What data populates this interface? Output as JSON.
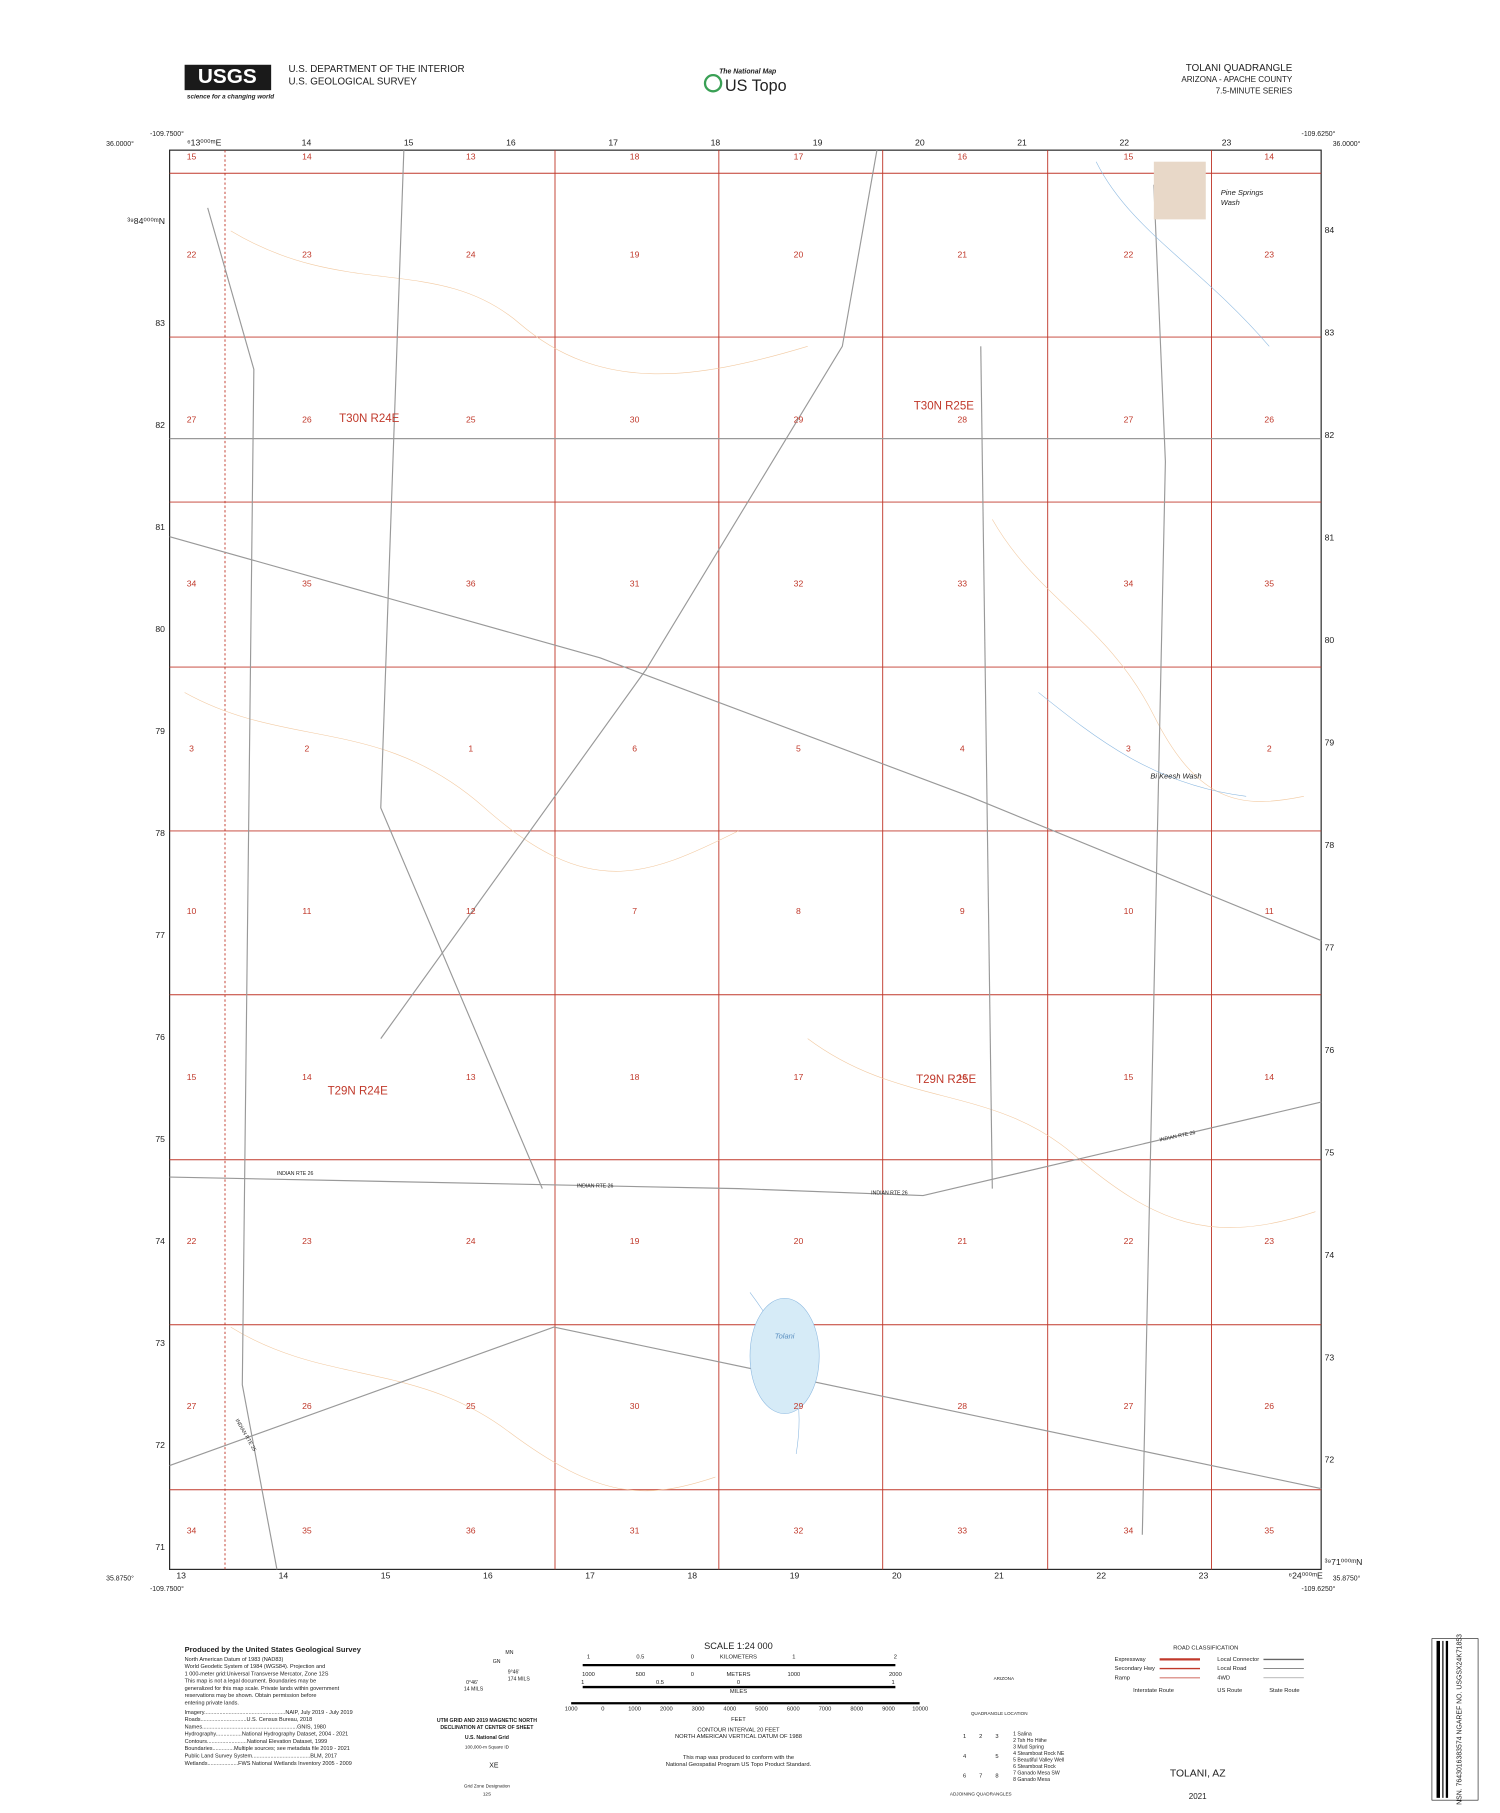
{
  "header": {
    "logo": "USGS",
    "tagline": "science for a changing world",
    "agency": "U.S. DEPARTMENT OF THE INTERIOR",
    "survey": "U.S. GEOLOGICAL SURVEY",
    "national_map": "The National Map",
    "us_topo": "US Topo",
    "quad_title": "TOLANI QUADRANGLE",
    "state_county": "ARIZONA - APACHE COUNTY",
    "series": "7.5-MINUTE SERIES"
  },
  "map": {
    "corners": {
      "top_left_lon": "-109.7500°",
      "top_left_lat": "36.0000°",
      "top_right_lon": "-109.6250°",
      "top_right_lat": "36.0000°",
      "bottom_left_lon": "-109.7500°",
      "bottom_left_lat": "35.8750°",
      "bottom_right_lon": "-109.6250°",
      "bottom_right_lat": "35.8750°"
    },
    "easting_top": [
      "⁶13⁰⁰⁰ᵐE",
      "14",
      "15",
      "16",
      "17",
      "18",
      "19",
      "20",
      "21",
      "22",
      "23"
    ],
    "easting_bottom": [
      "13",
      "14",
      "15",
      "16",
      "17",
      "18",
      "19",
      "20",
      "21",
      "22",
      "23",
      "⁶24⁰⁰⁰ᵐE"
    ],
    "northing_left": [
      "³⁹84⁰⁰⁰ᵐN",
      "83",
      "82",
      "81",
      "80",
      "79",
      "78",
      "77",
      "76",
      "75",
      "74",
      "73",
      "72",
      "71"
    ],
    "northing_right": [
      "84",
      "83",
      "82",
      "81",
      "80",
      "79",
      "78",
      "77",
      "76",
      "75",
      "74",
      "73",
      "72",
      "³⁹71⁰⁰⁰ᵐN"
    ],
    "sections": [
      [
        15,
        14,
        13,
        18,
        17,
        16,
        15,
        14
      ],
      [
        22,
        23,
        24,
        19,
        20,
        21,
        22,
        23
      ],
      [
        27,
        26,
        25,
        30,
        29,
        28,
        27,
        26
      ],
      [
        34,
        35,
        36,
        31,
        32,
        33,
        34,
        35
      ],
      [
        3,
        2,
        1,
        6,
        5,
        4,
        3,
        2
      ],
      [
        10,
        11,
        12,
        7,
        8,
        9,
        10,
        11
      ],
      [
        15,
        14,
        13,
        18,
        17,
        16,
        15,
        14
      ],
      [
        22,
        23,
        24,
        19,
        20,
        21,
        22,
        23
      ],
      [
        27,
        26,
        25,
        30,
        29,
        28,
        27,
        26
      ],
      [
        34,
        35,
        36,
        31,
        32,
        33,
        34,
        35
      ]
    ],
    "townships": [
      "T30N R24E",
      "T30N R25E",
      "T29N R24E",
      "T29N R25E"
    ],
    "places": [
      "Pine Springs",
      "Wash",
      "Bi Keesh Wash",
      "Tolani"
    ],
    "roads": [
      "INDIAN RTE 26",
      "INDIAN RTE 26",
      "INDIAN RTE 26",
      "INDIAN RTE 26",
      "INDIAN RTE 25"
    ]
  },
  "footer": {
    "producer": "Produced by the United States Geological Survey",
    "notes": [
      "North American Datum of 1983 (NAD83)",
      "World Geodetic System of 1984 (WGS84). Projection and",
      "1 000-meter grid:Universal Transverse Mercator, Zone 12S",
      "This map is not a legal document. Boundaries may be",
      "generalized for this map scale. Private lands within government",
      "reservations may be shown. Obtain permission before",
      "entering private lands."
    ],
    "credits": [
      "Imagery.....................................................NAIP, July 2019 - July 2019",
      "Roads..............................U.S. Census Bureau, 2018",
      "Names..............................................................GNIS, 1980",
      "Hydrography.................National Hydrography Dataset, 2004 - 2021",
      "Contours..........................National Elevation Dataset, 1999",
      "Boundaries..............Multiple sources; see metadata file 2019 - 2021",
      "Public Land Survey System......................................BLM, 2017",
      "Wetlands....................FWS National Wetlands Inventory 2005 - 2009"
    ],
    "declination": {
      "mn": "MN",
      "gn": "GN",
      "angle1": "9°46'",
      "mils1": "174 MILS",
      "angle2": "0°46'",
      "mils2": "14 MILS",
      "caption1": "UTM GRID AND 2019 MAGNETIC NORTH",
      "caption2": "DECLINATION AT CENTER OF SHEET"
    },
    "usng": {
      "title": "U.S. National Grid",
      "square_id": "100,000-m Square ID",
      "square": "XE",
      "gzd_label": "Grid Zone Designation",
      "gzd": "12S"
    },
    "scale": {
      "title": "SCALE 1:24 000",
      "km_label": "KILOMETERS",
      "km": [
        "1",
        "0.5",
        "0",
        "1",
        "2"
      ],
      "m_label": "METERS",
      "m": [
        "1000",
        "500",
        "0",
        "1000",
        "2000"
      ],
      "mi_label": "MILES",
      "mi": [
        "1",
        "0.5",
        "0",
        "1"
      ],
      "ft_label": "FEET",
      "ft": [
        "1000",
        "0",
        "1000",
        "2000",
        "3000",
        "4000",
        "5000",
        "6000",
        "7000",
        "8000",
        "9000",
        "10000"
      ]
    },
    "contour": [
      "CONTOUR INTERVAL 20 FEET",
      "NORTH AMERICAN VERTICAL DATUM OF 1988"
    ],
    "standard": [
      "This map was produced to conform with the",
      "National Geospatial Program US Topo Product Standard."
    ],
    "location": {
      "state": "ARIZONA",
      "caption": "QUADRANGLE LOCATION"
    },
    "adjoining": {
      "cells": [
        "1",
        "2",
        "3",
        "4",
        "5",
        "6",
        "7",
        "8"
      ],
      "names": [
        "1 Salina",
        "2 Tsh Ho Hiihe",
        "3 Mud Spring",
        "4 Steamboat Rock NE",
        "5 Beautiful Valley Well",
        "6 Steamboat Rock",
        "7 Ganado Mesa SW",
        "8 Ganado Mesa"
      ],
      "caption": "ADJOINING QUADRANGLES"
    },
    "roads": {
      "title": "ROAD CLASSIFICATION",
      "left": [
        "Expressway",
        "Secondary Hwy",
        "Ramp"
      ],
      "right": [
        "Local Connector",
        "Local Road",
        "4WD"
      ],
      "shields": [
        "Interstate Route",
        "US Route",
        "State Route"
      ]
    },
    "quad_name": "TOLANI, AZ",
    "year": "2021",
    "barcode": "NSN. 7643016383574 NGAREF NO. USGSX24K71853"
  }
}
